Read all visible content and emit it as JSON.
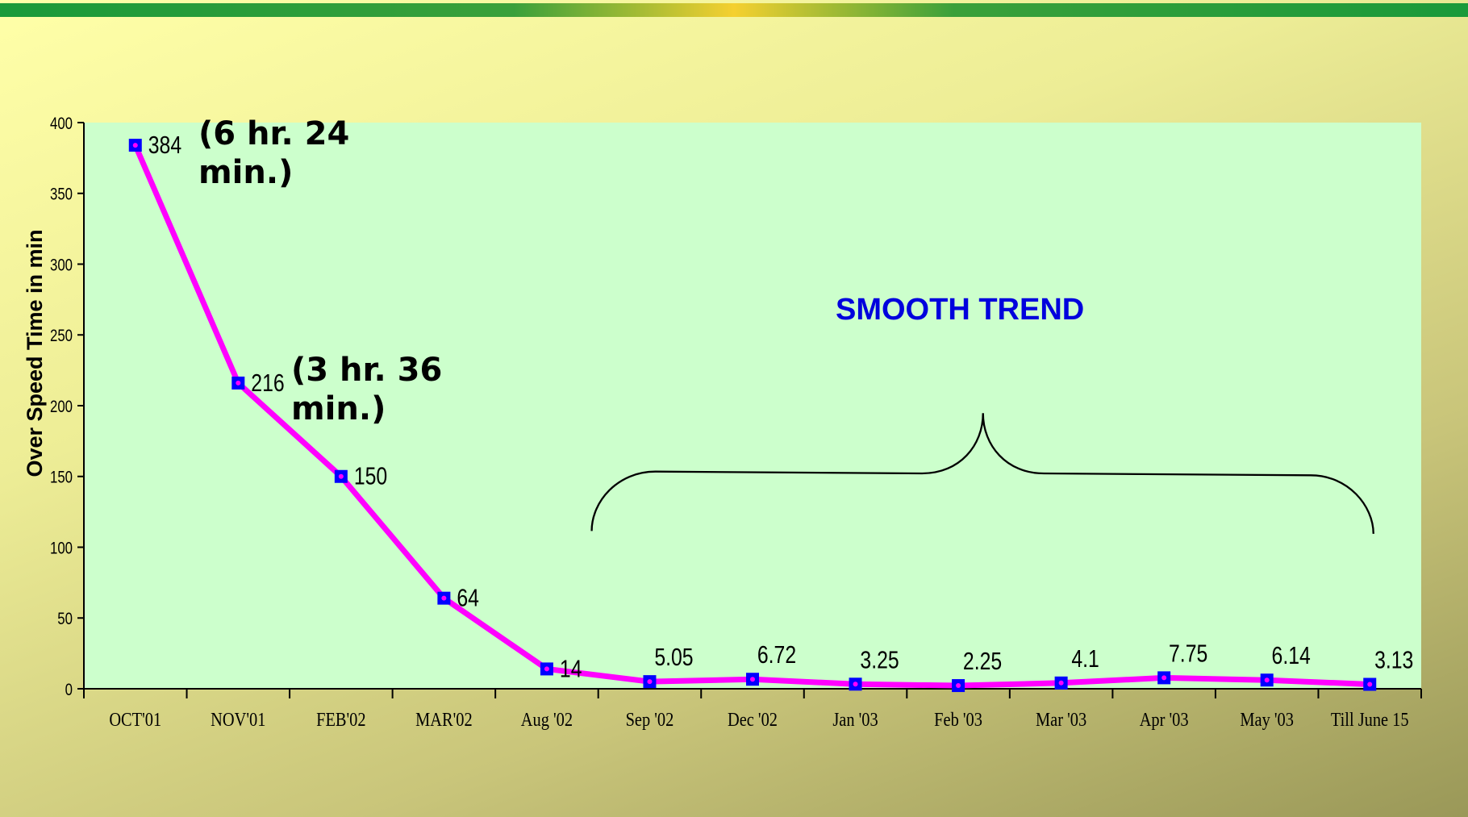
{
  "chart_data": {
    "type": "line",
    "y_label": "Over Speed Time in min",
    "categories": [
      "OCT'01",
      "NOV'01",
      "FEB'02",
      "MAR'02",
      "Aug '02",
      "Sep '02",
      "Dec '02",
      "Jan '03",
      "Feb '03",
      "Mar '03",
      "Apr '03",
      "May '03",
      "Till June 15"
    ],
    "series": [
      {
        "name": "Over Speed Time",
        "color": "#ff00ff",
        "marker_color": "#0000ff",
        "values": [
          384,
          216,
          150,
          64,
          14,
          5.05,
          6.72,
          3.25,
          2.25,
          4.1,
          7.75,
          6.14,
          3.13
        ]
      }
    ],
    "ylim": [
      0,
      400
    ],
    "yticks": [
      0,
      50,
      100,
      150,
      200,
      250,
      300,
      350,
      400
    ],
    "annotations": [
      "(6 hr. 24 min.)",
      "(3 hr. 36 min.)",
      "SMOOTH TREND"
    ]
  }
}
